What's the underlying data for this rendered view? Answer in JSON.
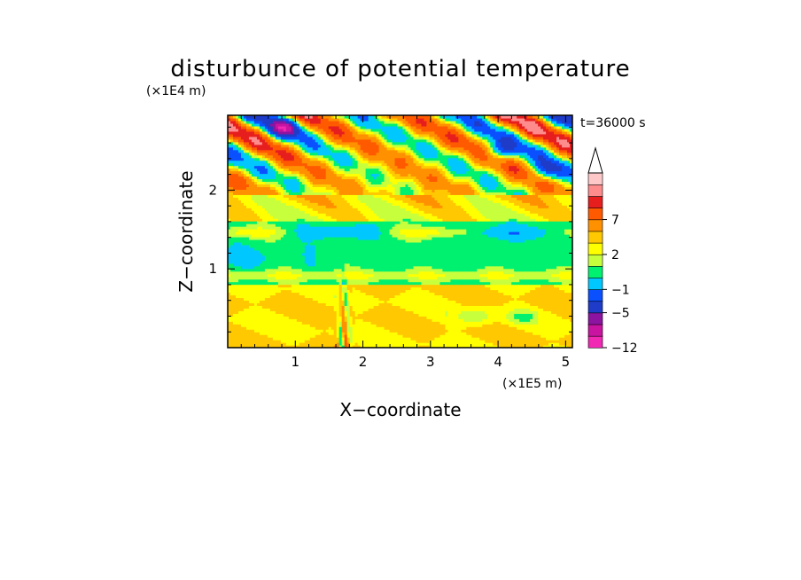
{
  "chart_data": {
    "type": "heatmap",
    "title": "disturbunce of potential temperature",
    "time_label": "t=36000 s",
    "xlabel": "X−coordinate",
    "ylabel": "Z−coordinate",
    "x_unit": "(×1E5 m)",
    "y_unit": "(×1E4 m)",
    "xlim": [
      0,
      5.1
    ],
    "ylim": [
      0,
      2.95
    ],
    "x_ticks": [
      "1",
      "2",
      "3",
      "4",
      "5"
    ],
    "y_ticks": [
      "1",
      "2"
    ],
    "colorbar": {
      "levels": [
        -12,
        -10,
        -8,
        -5,
        -3,
        -1,
        0,
        1,
        2,
        3,
        5,
        7,
        9,
        11
      ],
      "labels": [
        "−12",
        "−5",
        "−1",
        "2",
        "7"
      ],
      "colors": [
        "#f028b4",
        "#c814a0",
        "#8c14a0",
        "#1e3cc8",
        "#0a50ff",
        "#00c8ff",
        "#00f070",
        "#c8ff3c",
        "#ffff00",
        "#ffc800",
        "#ff9100",
        "#ff5a00",
        "#e61e1e",
        "#ff8c8c",
        "#ffc8c8"
      ],
      "extend_top": true
    },
    "features": [
      {
        "desc": "stratospheric wave band",
        "z_range": [
          1.9,
          2.95
        ],
        "pattern": "diagonal alternating warm/cold stripes"
      },
      {
        "desc": "middle troposphere",
        "z_range": [
          0.9,
          1.6
        ],
        "value_approx": -0.5
      },
      {
        "desc": "lower troposphere",
        "z_range": [
          0,
          0.8
        ],
        "value_approx": 2
      },
      {
        "desc": "mountain wave column",
        "x_center": 1.7,
        "z_range": [
          0,
          1.1
        ]
      }
    ]
  }
}
